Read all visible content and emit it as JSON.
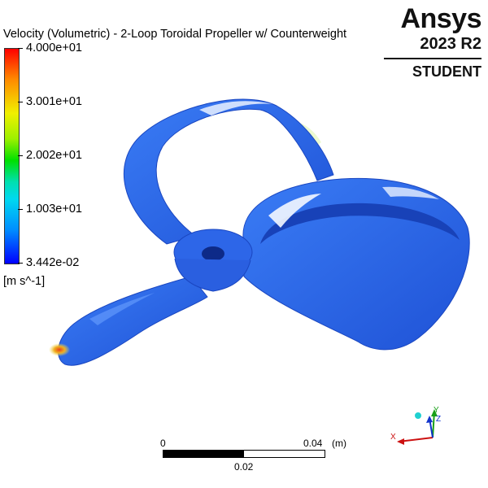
{
  "plot": {
    "title": "Velocity (Volumetric) - 2-Loop Toroidal Propeller w/ Counterweight",
    "legend": {
      "max_label": "4.000e+01",
      "tick2_label": "3.001e+01",
      "tick3_label": "2.002e+01",
      "tick4_label": "1.003e+01",
      "min_label": "3.442e-02",
      "units": "[m s^-1]"
    }
  },
  "branding": {
    "name": "Ansys",
    "version": "2023 R2",
    "edition": "STUDENT"
  },
  "scale": {
    "zero_label": "0",
    "max_label": "0.04",
    "unit_label": "(m)",
    "mid_label": "0.02"
  },
  "axes": {
    "x_label": "X",
    "y_label": "Y",
    "z_label": "Z"
  },
  "colors": {
    "propeller_body": "#2f6ef0",
    "propeller_dark": "#1f4fd0",
    "highlight": "#eaf1ff",
    "hot_spot": "#e8561a",
    "x_axis": "#cc1111",
    "y_axis": "#18a018",
    "z_axis": "#1133cc"
  }
}
